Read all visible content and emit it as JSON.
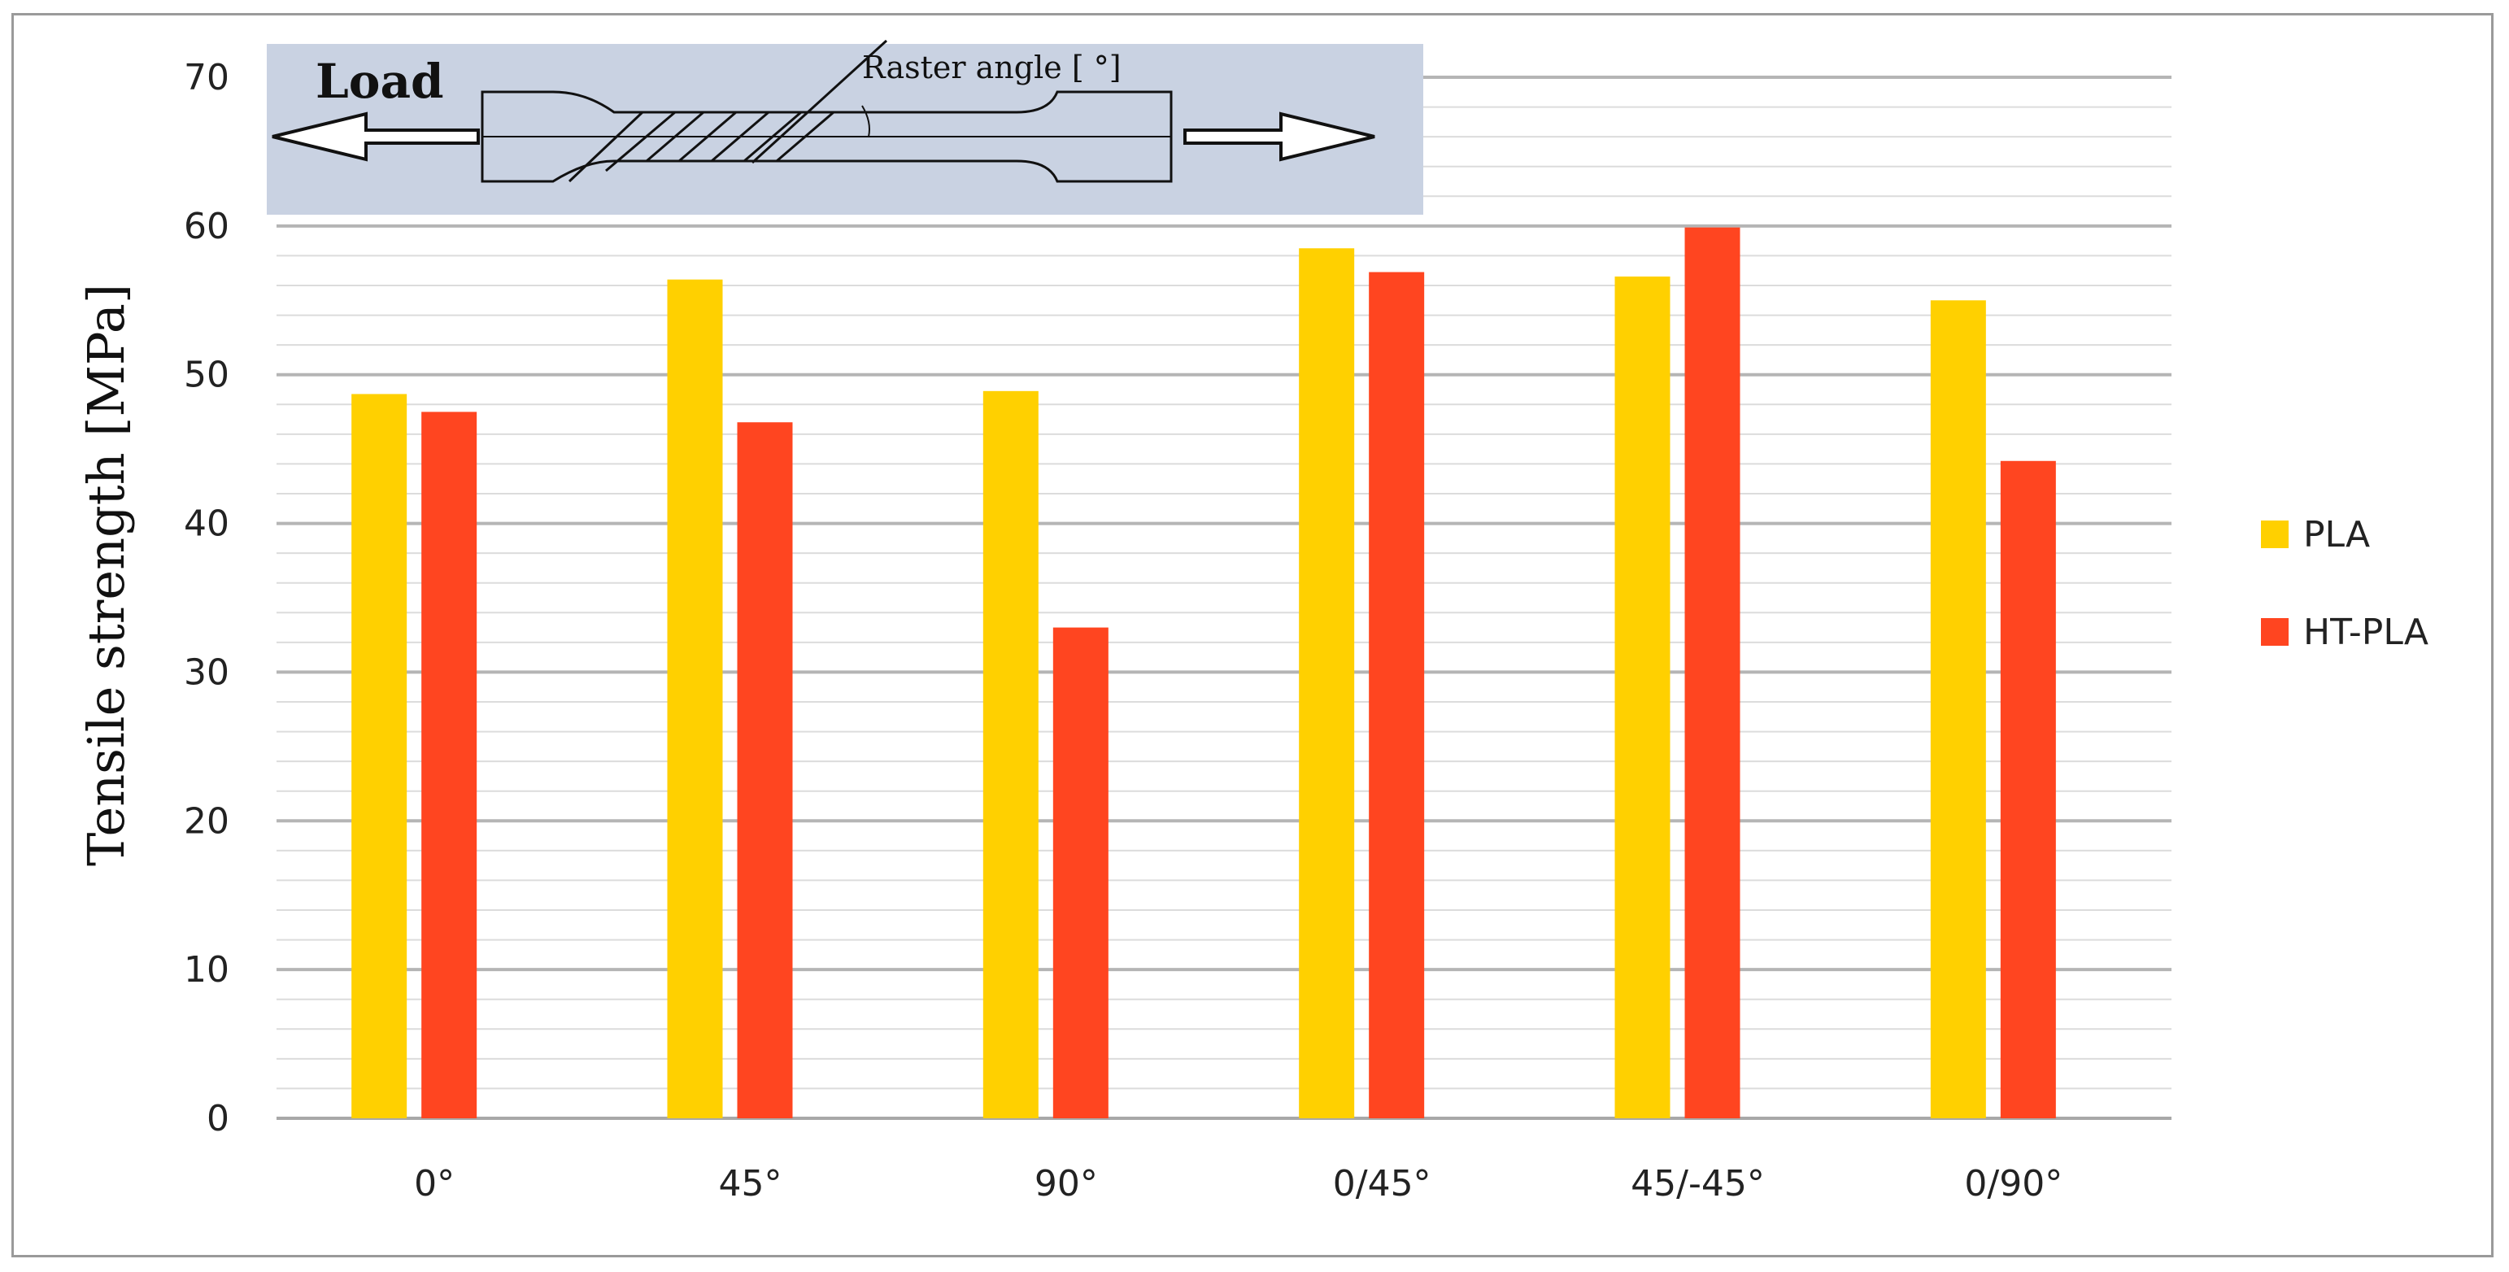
{
  "chart_data": {
    "type": "bar",
    "ylabel": "Tensile strength [MPa]",
    "ylim": [
      0,
      70
    ],
    "y_major_ticks": [
      0,
      10,
      20,
      30,
      40,
      50,
      60,
      70
    ],
    "y_minor_step": 2,
    "grid": true,
    "legend_position": "right",
    "categories": [
      "0°",
      "45°",
      "90°",
      "0/45°",
      "45/-45°",
      "0/90°"
    ],
    "series": [
      {
        "name": "PLA",
        "color": "#FFD000",
        "values": [
          48.7,
          56.4,
          48.9,
          58.5,
          56.6,
          55.0
        ]
      },
      {
        "name": "HT-PLA",
        "color": "#FF4520",
        "values": [
          47.5,
          46.8,
          33.0,
          56.9,
          59.9,
          44.2
        ]
      }
    ]
  },
  "inset": {
    "load_label": "Load",
    "angle_label": "Raster angle [ °]"
  }
}
